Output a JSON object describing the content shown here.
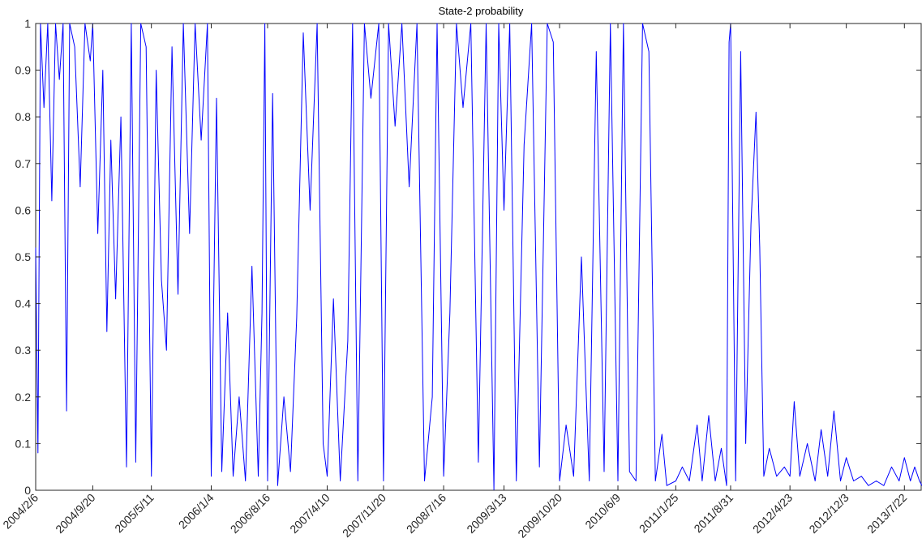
{
  "chart_data": {
    "type": "line",
    "title": "State-2 probability",
    "xlabel": "",
    "ylabel": "",
    "ylim": [
      0,
      1
    ],
    "yticks": [
      0,
      0.1,
      0.2,
      0.3,
      0.4,
      0.5,
      0.6,
      0.7,
      0.8,
      0.9,
      1
    ],
    "ytick_labels": [
      "0",
      "0.1",
      "0.2",
      "0.3",
      "0.4",
      "0.5",
      "0.6",
      "0.7",
      "0.8",
      "0.9",
      "1"
    ],
    "xticks": [
      "2004/2/6",
      "2004/9/20",
      "2005/5/11",
      "2006/1/4",
      "2006/8/16",
      "2007/4/10",
      "2007/11/20",
      "2008/7/16",
      "2009/3/13",
      "2009/10/20",
      "2010/6/9",
      "2011/1/25",
      "2011/8/31",
      "2012/4/23",
      "2012/12/3",
      "2013/7/22"
    ],
    "xlim": [
      "2004/2/6",
      "2013/9/30"
    ],
    "grid": false,
    "line_color": "#0000ff",
    "series": [
      {
        "values": [
          [
            "2004/2/6",
            0.52
          ],
          [
            "2004/2/15",
            0.08
          ],
          [
            "2004/2/25",
            1.0
          ],
          [
            "2004/3/10",
            0.82
          ],
          [
            "2004/3/25",
            1.0
          ],
          [
            "2004/4/10",
            0.62
          ],
          [
            "2004/4/25",
            1.0
          ],
          [
            "2004/5/10",
            0.88
          ],
          [
            "2004/5/25",
            1.0
          ],
          [
            "2004/6/8",
            0.17
          ],
          [
            "2004/6/20",
            1.0
          ],
          [
            "2004/7/10",
            0.95
          ],
          [
            "2004/8/1",
            0.65
          ],
          [
            "2004/8/20",
            1.0
          ],
          [
            "2004/9/10",
            0.92
          ],
          [
            "2004/9/20",
            1.0
          ],
          [
            "2004/10/10",
            0.55
          ],
          [
            "2004/10/30",
            0.9
          ],
          [
            "2004/11/15",
            0.34
          ],
          [
            "2004/12/1",
            0.75
          ],
          [
            "2004/12/20",
            0.41
          ],
          [
            "2005/1/10",
            0.8
          ],
          [
            "2005/2/1",
            0.05
          ],
          [
            "2005/2/20",
            1.0
          ],
          [
            "2005/3/10",
            0.06
          ],
          [
            "2005/3/30",
            1.0
          ],
          [
            "2005/4/20",
            0.95
          ],
          [
            "2005/5/11",
            0.03
          ],
          [
            "2005/5/30",
            0.9
          ],
          [
            "2005/6/20",
            0.45
          ],
          [
            "2005/7/10",
            0.3
          ],
          [
            "2005/8/1",
            0.95
          ],
          [
            "2005/8/25",
            0.42
          ],
          [
            "2005/9/15",
            1.0
          ],
          [
            "2005/10/10",
            0.55
          ],
          [
            "2005/11/1",
            1.0
          ],
          [
            "2005/11/25",
            0.75
          ],
          [
            "2005/12/20",
            1.0
          ],
          [
            "2006/1/4",
            0.03
          ],
          [
            "2006/1/25",
            0.84
          ],
          [
            "2006/2/15",
            0.04
          ],
          [
            "2006/3/10",
            0.38
          ],
          [
            "2006/4/1",
            0.03
          ],
          [
            "2006/4/25",
            0.2
          ],
          [
            "2006/5/20",
            0.02
          ],
          [
            "2006/6/15",
            0.48
          ],
          [
            "2006/7/10",
            0.03
          ],
          [
            "2006/7/25",
            0.38
          ],
          [
            "2006/8/5",
            1.0
          ],
          [
            "2006/8/16",
            0.02
          ],
          [
            "2006/9/5",
            0.85
          ],
          [
            "2006/9/25",
            0.01
          ],
          [
            "2006/10/20",
            0.2
          ],
          [
            "2006/11/15",
            0.04
          ],
          [
            "2006/12/10",
            0.37
          ],
          [
            "2007/1/5",
            0.98
          ],
          [
            "2007/2/1",
            0.6
          ],
          [
            "2007/3/1",
            1.0
          ],
          [
            "2007/3/25",
            0.1
          ],
          [
            "2007/4/10",
            0.03
          ],
          [
            "2007/5/5",
            0.41
          ],
          [
            "2007/6/1",
            0.02
          ],
          [
            "2007/7/1",
            0.32
          ],
          [
            "2007/7/20",
            1.0
          ],
          [
            "2007/8/10",
            0.02
          ],
          [
            "2007/9/5",
            1.0
          ],
          [
            "2007/10/1",
            0.84
          ],
          [
            "2007/11/1",
            1.0
          ],
          [
            "2007/11/20",
            0.02
          ],
          [
            "2007/12/10",
            1.0
          ],
          [
            "2008/1/5",
            0.78
          ],
          [
            "2008/2/1",
            1.0
          ],
          [
            "2008/3/1",
            0.65
          ],
          [
            "2008/4/1",
            1.0
          ],
          [
            "2008/5/1",
            0.02
          ],
          [
            "2008/6/1",
            0.2
          ],
          [
            "2008/6/20",
            1.0
          ],
          [
            "2008/7/16",
            0.03
          ],
          [
            "2008/8/10",
            0.38
          ],
          [
            "2008/9/5",
            1.0
          ],
          [
            "2008/10/1",
            0.82
          ],
          [
            "2008/11/1",
            1.0
          ],
          [
            "2008/12/1",
            0.06
          ],
          [
            "2009/1/1",
            1.0
          ],
          [
            "2009/2/1",
            0.001
          ],
          [
            "2009/2/20",
            1.0
          ],
          [
            "2009/3/13",
            0.6
          ],
          [
            "2009/4/5",
            1.0
          ],
          [
            "2009/5/1",
            0.02
          ],
          [
            "2009/6/1",
            0.74
          ],
          [
            "2009/7/1",
            1.0
          ],
          [
            "2009/8/1",
            0.05
          ],
          [
            "2009/9/1",
            1.0
          ],
          [
            "2009/9/25",
            0.96
          ],
          [
            "2009/10/20",
            0.02
          ],
          [
            "2009/11/15",
            0.14
          ],
          [
            "2009/12/15",
            0.03
          ],
          [
            "2010/1/15",
            0.5
          ],
          [
            "2010/2/15",
            0.02
          ],
          [
            "2010/3/15",
            0.94
          ],
          [
            "2010/4/15",
            0.04
          ],
          [
            "2010/5/10",
            1.0
          ],
          [
            "2010/6/9",
            0.02
          ],
          [
            "2010/7/1",
            1.0
          ],
          [
            "2010/7/25",
            0.04
          ],
          [
            "2010/8/20",
            0.02
          ],
          [
            "2010/9/15",
            1.0
          ],
          [
            "2010/10/10",
            0.94
          ],
          [
            "2010/11/5",
            0.02
          ],
          [
            "2010/12/1",
            0.12
          ],
          [
            "2010/12/20",
            0.01
          ],
          [
            "2011/1/25",
            0.02
          ],
          [
            "2011/2/20",
            0.05
          ],
          [
            "2011/3/20",
            0.02
          ],
          [
            "2011/4/20",
            0.14
          ],
          [
            "2011/5/10",
            0.02
          ],
          [
            "2011/6/5",
            0.16
          ],
          [
            "2011/7/1",
            0.02
          ],
          [
            "2011/7/25",
            0.09
          ],
          [
            "2011/8/15",
            0.01
          ],
          [
            "2011/8/25",
            0.96
          ],
          [
            "2011/8/31",
            1.0
          ],
          [
            "2011/9/20",
            0.02
          ],
          [
            "2011/10/10",
            0.94
          ],
          [
            "2011/10/30",
            0.1
          ],
          [
            "2011/11/20",
            0.57
          ],
          [
            "2011/12/10",
            0.81
          ],
          [
            "2011/12/25",
            0.52
          ],
          [
            "2012/1/10",
            0.03
          ],
          [
            "2012/2/1",
            0.09
          ],
          [
            "2012/3/1",
            0.03
          ],
          [
            "2012/4/1",
            0.05
          ],
          [
            "2012/4/23",
            0.03
          ],
          [
            "2012/5/10",
            0.19
          ],
          [
            "2012/6/1",
            0.03
          ],
          [
            "2012/7/1",
            0.1
          ],
          [
            "2012/8/1",
            0.02
          ],
          [
            "2012/8/25",
            0.13
          ],
          [
            "2012/9/20",
            0.03
          ],
          [
            "2012/10/15",
            0.17
          ],
          [
            "2012/11/10",
            0.02
          ],
          [
            "2012/12/3",
            0.07
          ],
          [
            "2013/1/1",
            0.02
          ],
          [
            "2013/2/1",
            0.03
          ],
          [
            "2013/3/1",
            0.01
          ],
          [
            "2013/4/1",
            0.02
          ],
          [
            "2013/5/1",
            0.01
          ],
          [
            "2013/6/1",
            0.05
          ],
          [
            "2013/7/1",
            0.02
          ],
          [
            "2013/7/22",
            0.07
          ],
          [
            "2013/8/15",
            0.02
          ],
          [
            "2013/9/1",
            0.05
          ],
          [
            "2013/9/20",
            0.02
          ],
          [
            "2013/9/30",
            0.01
          ]
        ]
      }
    ]
  }
}
